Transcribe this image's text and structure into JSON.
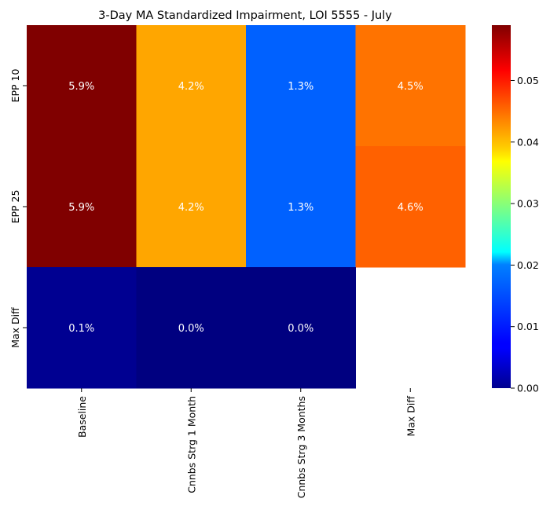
{
  "chart_data": {
    "type": "heatmap",
    "title": "3-Day MA Standardized Impairment, LOI 5555 - July",
    "xlabel": "",
    "ylabel": "",
    "x_categories": [
      "Baseline",
      "Cnnbs Strg 1 Month",
      "Cnnbs Strg 3 Months",
      "Max Diff"
    ],
    "y_categories": [
      "EPP 10",
      "EPP 25",
      "Max Diff"
    ],
    "values": [
      [
        0.059,
        0.042,
        0.013,
        0.045
      ],
      [
        0.059,
        0.042,
        0.013,
        0.046
      ],
      [
        0.001,
        0.0,
        0.0,
        null
      ]
    ],
    "annotations": [
      [
        "5.9%",
        "4.2%",
        "1.3%",
        "4.5%"
      ],
      [
        "5.9%",
        "4.2%",
        "1.3%",
        "4.6%"
      ],
      [
        "0.1%",
        "0.0%",
        "0.0%",
        ""
      ]
    ],
    "colormap": "jet",
    "color_range": [
      0.0,
      0.059
    ],
    "colorbar_ticks": [
      "0.00",
      "0.01",
      "0.02",
      "0.03",
      "0.04",
      "0.05"
    ],
    "colorbar_tick_values": [
      0.0,
      0.01,
      0.02,
      0.03,
      0.04,
      0.05
    ],
    "legend": "colorbar-right",
    "grid": false
  }
}
